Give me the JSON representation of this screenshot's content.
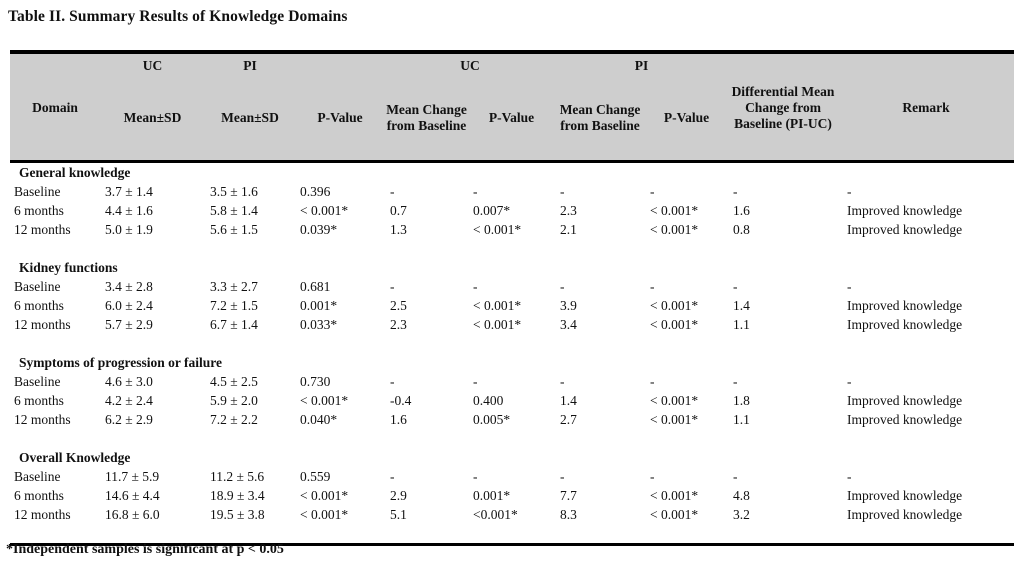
{
  "title": "Table II. Summary Results of Knowledge Domains",
  "footnote": "*Independent samples is significant at p < 0.05",
  "colors": {
    "header_bg": "#cecece",
    "border": "#000000",
    "text": "#111111"
  },
  "table": {
    "groups": {
      "uc_baseline": "UC",
      "pi_baseline": "PI",
      "uc_change": "UC",
      "pi_change": "PI"
    },
    "columns": {
      "domain": "Domain",
      "uc_mean_sd": "Mean±SD",
      "pi_mean_sd": "Mean±SD",
      "p_value_baseline": "P-Value",
      "uc_mean_change": "Mean Change from Baseline",
      "uc_p_value": "P-Value",
      "pi_mean_change": "Mean Change from Baseline",
      "pi_p_value": "P-Value",
      "differential": "Differential Mean Change from Baseline (PI-UC)",
      "remark": "Remark"
    },
    "sections": [
      {
        "name": "General knowledge",
        "rows": [
          {
            "label": "Baseline",
            "cells": [
              "3.7 ± 1.4",
              "3.5 ± 1.6",
              "0.396",
              "-",
              "-",
              "-",
              "-",
              "-",
              "-"
            ]
          },
          {
            "label": "6 months",
            "cells": [
              "4.4 ± 1.6",
              "5.8 ± 1.4",
              "< 0.001*",
              "0.7",
              "0.007*",
              "2.3",
              "< 0.001*",
              "1.6",
              "Improved knowledge"
            ]
          },
          {
            "label": "12 months",
            "cells": [
              "5.0 ± 1.9",
              "5.6 ± 1.5",
              "0.039*",
              "1.3",
              "< 0.001*",
              "2.1",
              "< 0.001*",
              "0.8",
              "Improved knowledge"
            ]
          }
        ]
      },
      {
        "name": "Kidney functions",
        "rows": [
          {
            "label": "Baseline",
            "cells": [
              "3.4 ± 2.8",
              "3.3 ± 2.7",
              "0.681",
              "-",
              "-",
              "-",
              "-",
              "-",
              "-"
            ]
          },
          {
            "label": "6 months",
            "cells": [
              "6.0 ± 2.4",
              "7.2 ± 1.5",
              "0.001*",
              "2.5",
              "< 0.001*",
              "3.9",
              "< 0.001*",
              "1.4",
              "Improved knowledge"
            ]
          },
          {
            "label": "12 months",
            "cells": [
              "5.7 ± 2.9",
              "6.7 ± 1.4",
              "0.033*",
              "2.3",
              "< 0.001*",
              "3.4",
              "< 0.001*",
              "1.1",
              "Improved knowledge"
            ]
          }
        ]
      },
      {
        "name": "Symptoms of progression or failure",
        "rows": [
          {
            "label": "Baseline",
            "cells": [
              "4.6 ± 3.0",
              "4.5 ± 2.5",
              "0.730",
              "-",
              "-",
              "-",
              "-",
              "-",
              "-"
            ]
          },
          {
            "label": "6 months",
            "cells": [
              "4.2 ± 2.4",
              "5.9 ± 2.0",
              "< 0.001*",
              "-0.4",
              "0.400",
              "1.4",
              "< 0.001*",
              "1.8",
              "Improved knowledge"
            ]
          },
          {
            "label": "12 months",
            "cells": [
              "6.2 ± 2.9",
              "7.2 ± 2.2",
              "0.040*",
              "1.6",
              "0.005*",
              "2.7",
              "< 0.001*",
              "1.1",
              "Improved knowledge"
            ]
          }
        ]
      },
      {
        "name": "Overall Knowledge",
        "rows": [
          {
            "label": "Baseline",
            "cells": [
              "11.7 ± 5.9",
              "11.2 ± 5.6",
              "0.559",
              "-",
              "-",
              "-",
              "-",
              "-",
              "-"
            ]
          },
          {
            "label": "6 months",
            "cells": [
              "14.6 ± 4.4",
              "18.9 ± 3.4",
              "< 0.001*",
              "2.9",
              "0.001*",
              "7.7",
              "< 0.001*",
              "4.8",
              "Improved knowledge"
            ]
          },
          {
            "label": "12 months",
            "cells": [
              "16.8 ± 6.0",
              "19.5 ± 3.8",
              "< 0.001*",
              "5.1",
              "<0.001*",
              "8.3",
              "< 0.001*",
              "3.2",
              "Improved knowledge"
            ]
          }
        ]
      }
    ]
  }
}
